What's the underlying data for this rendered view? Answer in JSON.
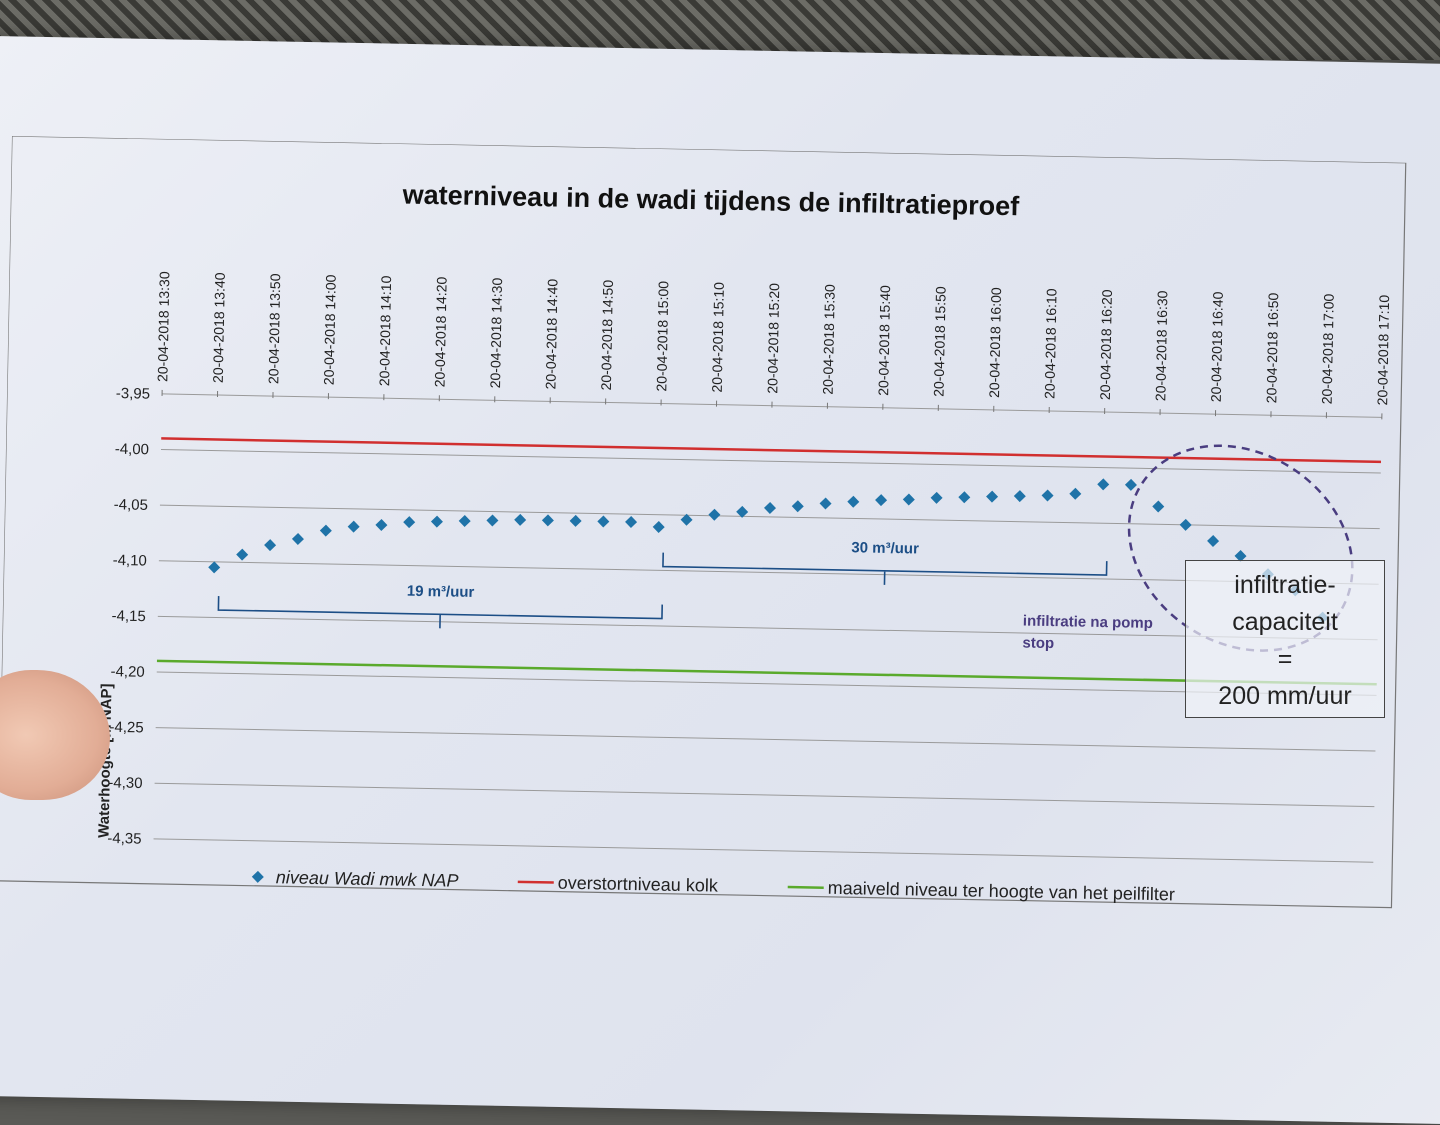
{
  "colors": {
    "points": "#1f73a8",
    "overstort": "#d12f2f",
    "maaiveld": "#5aaa2c",
    "annotation": "#1c4e86",
    "circle": "#4a3d80"
  },
  "chart_data": {
    "type": "scatter",
    "title": "waterniveau in de wadi tijdens de infiltratieproef",
    "ylabel": "Waterhoogte  [m NAP]",
    "ylim": [
      -4.35,
      -3.95
    ],
    "yticks": [
      "-3,95",
      "-4,00",
      "-4,05",
      "-4,10",
      "-4,15",
      "-4,20",
      "-4,25",
      "-4,30",
      "-4,35"
    ],
    "xticks": [
      "20-04-2018 13:30",
      "20-04-2018 13:40",
      "20-04-2018 13:50",
      "20-04-2018 14:00",
      "20-04-2018 14:10",
      "20-04-2018 14:20",
      "20-04-2018 14:30",
      "20-04-2018 14:40",
      "20-04-2018 14:50",
      "20-04-2018 15:00",
      "20-04-2018 15:10",
      "20-04-2018 15:20",
      "20-04-2018 15:30",
      "20-04-2018 15:40",
      "20-04-2018 15:50",
      "20-04-2018 16:00",
      "20-04-2018 16:10",
      "20-04-2018 16:20",
      "20-04-2018 16:30",
      "20-04-2018 16:40",
      "20-04-2018 16:50",
      "20-04-2018 17:00",
      "20-04-2018 17:10"
    ],
    "grid": true,
    "legend_position": "bottom",
    "series": [
      {
        "name": "niveau Wadi mwk NAP",
        "kind": "points",
        "x": [
          "13:40",
          "13:45",
          "13:50",
          "13:55",
          "14:00",
          "14:05",
          "14:10",
          "14:15",
          "14:20",
          "14:25",
          "14:30",
          "14:35",
          "14:40",
          "14:45",
          "14:50",
          "14:55",
          "15:00",
          "15:05",
          "15:10",
          "15:15",
          "15:20",
          "15:25",
          "15:30",
          "15:35",
          "15:40",
          "15:45",
          "15:50",
          "15:55",
          "16:00",
          "16:05",
          "16:10",
          "16:15",
          "16:20",
          "16:25",
          "16:30",
          "16:35",
          "16:40",
          "16:45",
          "16:50",
          "16:55",
          "17:00"
        ],
        "values": [
          -4.105,
          -4.093,
          -4.084,
          -4.078,
          -4.07,
          -4.066,
          -4.064,
          -4.061,
          -4.06,
          -4.059,
          -4.058,
          -4.057,
          -4.057,
          -4.057,
          -4.057,
          -4.057,
          -4.061,
          -4.054,
          -4.049,
          -4.046,
          -4.042,
          -4.04,
          -4.037,
          -4.035,
          -4.033,
          -4.032,
          -4.03,
          -4.029,
          -4.028,
          -4.027,
          -4.026,
          -4.024,
          -4.015,
          -4.015,
          -4.034,
          -4.05,
          -4.064,
          -4.077,
          -4.093,
          -4.107,
          -4.131
        ]
      },
      {
        "name": "overstortniveau kolk",
        "kind": "line",
        "value": -3.99
      },
      {
        "name": "maaiveld niveau ter hoogte van het peilfilter",
        "kind": "line",
        "value": -4.19
      }
    ],
    "annotations": {
      "bracket1": {
        "label": "19 m³/uur",
        "from": "13:40",
        "to": "15:00"
      },
      "bracket2": {
        "label": "30 m³/uur",
        "from": "15:00",
        "to": "16:20"
      },
      "circle_label_1": "infiltratie na pomp",
      "circle_label_2": "stop"
    }
  },
  "callout": {
    "line1": "infiltratie-",
    "line2": "capaciteit",
    "line3": "=",
    "line4": "200 mm/uur"
  }
}
